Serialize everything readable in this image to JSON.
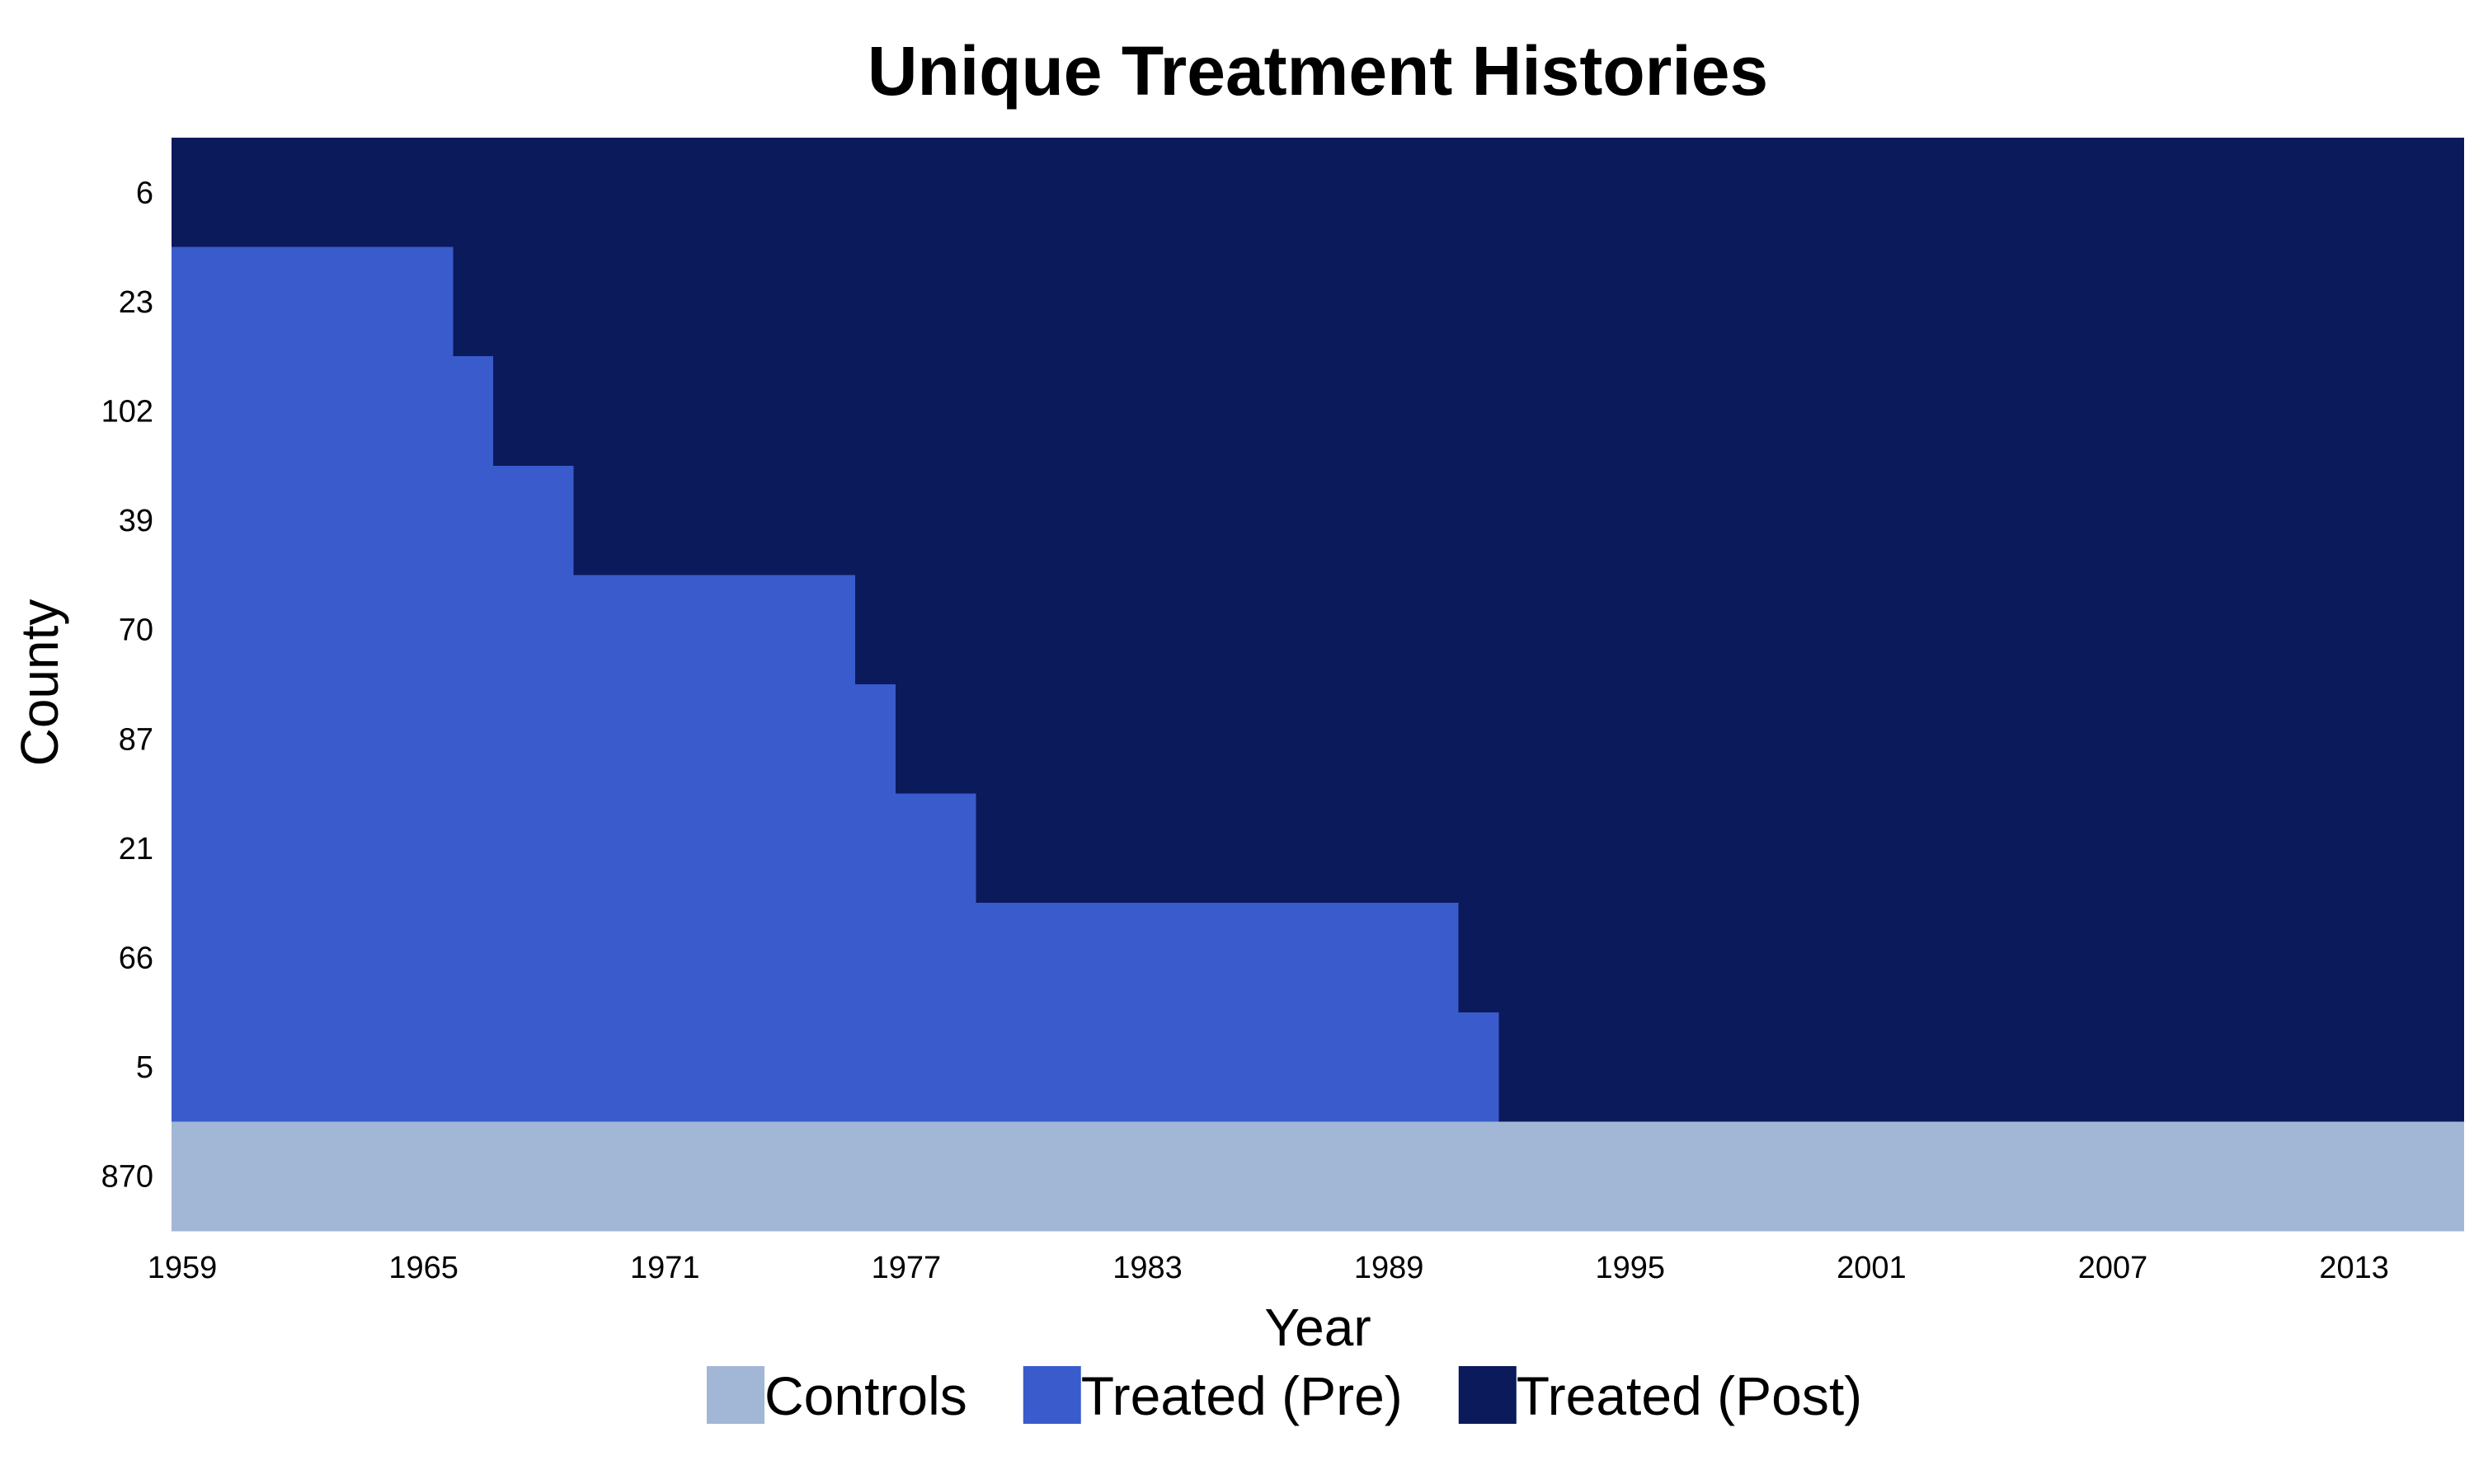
{
  "chart_data": {
    "type": "heatmap",
    "title": "Unique Treatment Histories",
    "xlabel": "Year",
    "ylabel": "County",
    "x_range": [
      1959,
      2016
    ],
    "x_ticks": [
      "1959",
      "1965",
      "1971",
      "1977",
      "1983",
      "1989",
      "1995",
      "2001",
      "2007",
      "2013"
    ],
    "grid": false,
    "legend_position": "bottom",
    "rows": [
      {
        "county": "6",
        "group": "treated",
        "treatment_start": 1959
      },
      {
        "county": "23",
        "group": "treated",
        "treatment_start": 1966
      },
      {
        "county": "102",
        "group": "treated",
        "treatment_start": 1967
      },
      {
        "county": "39",
        "group": "treated",
        "treatment_start": 1969
      },
      {
        "county": "70",
        "group": "treated",
        "treatment_start": 1976
      },
      {
        "county": "87",
        "group": "treated",
        "treatment_start": 1977
      },
      {
        "county": "21",
        "group": "treated",
        "treatment_start": 1979
      },
      {
        "county": "66",
        "group": "treated",
        "treatment_start": 1991
      },
      {
        "county": "5",
        "group": "treated",
        "treatment_start": 1992
      },
      {
        "county": "870",
        "group": "control",
        "treatment_start": null
      }
    ],
    "legend": [
      {
        "key": "controls",
        "label": "Controls",
        "color": "#a2b6d6"
      },
      {
        "key": "pre",
        "label": "Treated (Pre)",
        "color": "#3a5bcc"
      },
      {
        "key": "post",
        "label": "Treated (Post)",
        "color": "#0b1a5b"
      }
    ]
  }
}
